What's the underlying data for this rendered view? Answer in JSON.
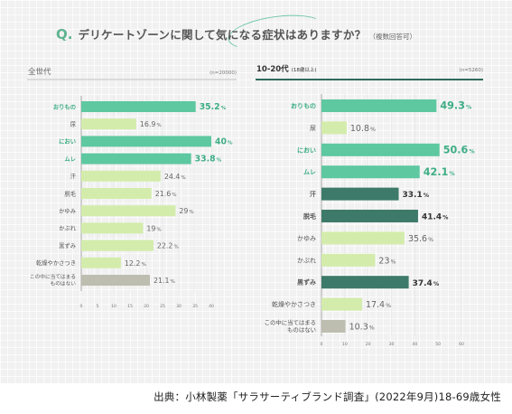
{
  "title": {
    "q_mark": "Q.",
    "text": "デリケートゾーンに関して気になる症状はありますか？",
    "note": "（複数回答可）"
  },
  "source": "出典：小林製薬「サラサーティブランド調査」(2022年9月)18-69歳女性",
  "colors": {
    "highlight": "#5ec8a0",
    "normal": "#d3ecab",
    "dark": "#3d7a69",
    "none": "#bdbdb0"
  },
  "chart_data": [
    {
      "type": "bar",
      "orientation": "horizontal",
      "title": "全世代",
      "sample": "(n=20000)",
      "unit": "%",
      "xlim": [
        0,
        40
      ],
      "xticks": [
        0,
        5,
        10,
        15,
        20,
        25,
        30,
        35,
        40
      ],
      "categories": [
        "おりもの",
        "尿",
        "におい",
        "ムレ",
        "汗",
        "脱毛",
        "かゆみ",
        "かぶれ",
        "黒ずみ",
        "乾燥やかさつき",
        "この中に当てはまる ものはない"
      ],
      "values": [
        35.2,
        16.9,
        40,
        33.8,
        24.4,
        21.6,
        29,
        19,
        22.2,
        12.2,
        21.1
      ],
      "styles": [
        "highlight",
        "normal",
        "highlight",
        "highlight",
        "normal",
        "normal",
        "normal",
        "normal",
        "normal",
        "normal",
        "none"
      ]
    },
    {
      "type": "bar",
      "orientation": "horizontal",
      "title": "10-20代",
      "title_note": "(18歳以上)",
      "sample": "(n=5260)",
      "unit": "%",
      "xlim": [
        0,
        60
      ],
      "xticks": [
        0,
        10,
        20,
        30,
        40,
        50,
        60
      ],
      "categories": [
        "おりもの",
        "尿",
        "におい",
        "ムレ",
        "汗",
        "脱毛",
        "かゆみ",
        "かぶれ",
        "黒ずみ",
        "乾燥やかさつき",
        "この中に当てはまる ものはない"
      ],
      "values": [
        49.3,
        10.8,
        50.6,
        42.1,
        33.1,
        41.4,
        35.6,
        23,
        37.4,
        17.4,
        10.3
      ],
      "styles": [
        "highlight",
        "normal",
        "highlight",
        "highlight",
        "dark",
        "dark",
        "normal",
        "normal",
        "dark",
        "normal",
        "none"
      ]
    }
  ]
}
